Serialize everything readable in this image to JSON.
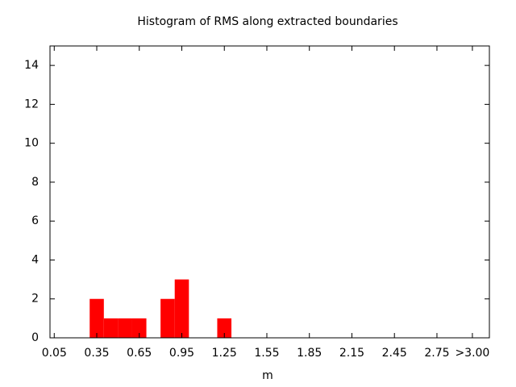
{
  "chart_data": {
    "type": "histogram",
    "title": "Histogram of RMS along extracted boundaries",
    "x_label": "m",
    "bins": [
      0.3,
      0.4,
      0.5,
      0.6,
      0.7,
      0.8,
      0.9,
      1.0,
      1.1,
      1.2,
      1.3
    ],
    "values": [
      2,
      1,
      1,
      1,
      0,
      2,
      3,
      0,
      0,
      1
    ],
    "color": "#ff0000",
    "xlim": [
      0.02,
      3.12
    ],
    "xticks": [
      0.05,
      0.35,
      0.65,
      0.95,
      1.25,
      1.55,
      1.85,
      2.15,
      2.45,
      2.75,
      {
        "value": 3,
        "label": ">3.00"
      }
    ],
    "ylim": [
      0,
      15
    ],
    "yticks": [
      0,
      2,
      4,
      6,
      8,
      10,
      12,
      14
    ]
  }
}
